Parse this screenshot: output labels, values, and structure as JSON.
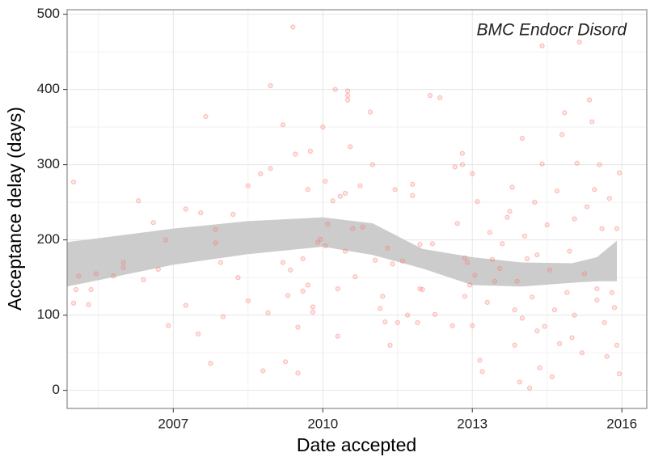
{
  "chart_data": {
    "type": "scatter",
    "annotation": "BMC Endocr Disord",
    "x_label": "Date accepted",
    "y_label": "Acceptance delay (days)",
    "xlim": [
      2004.87,
      2016.5
    ],
    "ylim": [
      -24,
      506
    ],
    "xticks": [
      2007,
      2010,
      2013,
      2016
    ],
    "yticks": [
      0,
      100,
      200,
      300,
      400,
      500
    ],
    "grid": true,
    "color": "#f8766d",
    "x": [
      2005.0,
      2005.0,
      2005.05,
      2005.1,
      2005.3,
      2005.35,
      2005.45,
      2005.8,
      2006.0,
      2006.0,
      2006.3,
      2006.4,
      2006.6,
      2006.7,
      2006.85,
      2006.9,
      2007.25,
      2007.25,
      2007.5,
      2007.55,
      2007.65,
      2007.75,
      2007.85,
      2007.85,
      2007.95,
      2008.0,
      2008.2,
      2008.3,
      2008.5,
      2008.5,
      2008.75,
      2008.8,
      2008.9,
      2008.95,
      2008.95,
      2009.2,
      2009.2,
      2009.25,
      2009.3,
      2009.35,
      2009.4,
      2009.45,
      2009.5,
      2009.5,
      2009.6,
      2009.6,
      2009.7,
      2009.7,
      2009.75,
      2009.8,
      2009.8,
      2009.9,
      2009.95,
      2010.0,
      2010.35,
      2010.45,
      2010.5,
      2010.5,
      2010.5,
      2010.55,
      2010.05,
      2010.05,
      2010.1,
      2010.2,
      2010.25,
      2010.3,
      2010.3,
      2010.45,
      2010.6,
      2010.65,
      2010.75,
      2010.8,
      2010.95,
      2011.0,
      2011.05,
      2011.15,
      2011.2,
      2011.25,
      2011.3,
      2011.35,
      2011.4,
      2011.45,
      2011.5,
      2011.6,
      2011.7,
      2011.8,
      2011.8,
      2011.9,
      2011.95,
      2011.95,
      2012.0,
      2012.15,
      2012.2,
      2012.25,
      2012.35,
      2012.6,
      2012.65,
      2012.7,
      2012.8,
      2012.8,
      2012.85,
      2012.85,
      2012.9,
      2012.95,
      2013.0,
      2013.0,
      2013.05,
      2013.1,
      2013.15,
      2013.2,
      2013.3,
      2013.35,
      2013.4,
      2013.45,
      2013.55,
      2013.6,
      2013.7,
      2013.75,
      2013.8,
      2013.85,
      2013.9,
      2013.95,
      2014.0,
      2014.0,
      2014.05,
      2014.1,
      2014.15,
      2014.2,
      2014.25,
      2014.3,
      2014.35,
      2014.4,
      2014.4,
      2014.45,
      2014.5,
      2014.55,
      2014.6,
      2014.65,
      2014.7,
      2014.75,
      2014.8,
      2014.85,
      2014.9,
      2014.95,
      2015.0,
      2015.05,
      2015.1,
      2015.15,
      2015.2,
      2015.25,
      2015.3,
      2015.35,
      2015.4,
      2015.45,
      2015.5,
      2015.55,
      2015.6,
      2015.65,
      2015.7,
      2015.75,
      2015.8,
      2015.85,
      2015.9,
      2015.9,
      2015.95,
      2015.95,
      2015.5,
      2014.3,
      2013.85,
      2015.05
    ],
    "values": [
      277,
      116,
      134,
      152,
      114,
      134,
      155,
      152,
      170,
      163,
      252,
      147,
      223,
      161,
      200,
      86,
      113,
      241,
      75,
      236,
      364,
      36,
      214,
      196,
      170,
      98,
      234,
      150,
      272,
      119,
      288,
      26,
      103,
      405,
      295,
      353,
      170,
      38,
      126,
      160,
      483,
      314,
      23,
      84,
      175,
      132,
      267,
      140,
      318,
      111,
      104,
      197,
      201,
      350,
      258,
      185,
      398,
      392,
      386,
      324,
      278,
      192,
      221,
      252,
      400,
      135,
      72,
      262,
      215,
      151,
      272,
      217,
      370,
      300,
      173,
      109,
      125,
      91,
      189,
      60,
      168,
      267,
      90,
      172,
      100,
      259,
      274,
      90,
      194,
      135,
      134,
      392,
      195,
      101,
      389,
      86,
      297,
      222,
      300,
      315,
      176,
      125,
      170,
      140,
      86,
      288,
      153,
      251,
      40,
      25,
      117,
      210,
      174,
      145,
      162,
      195,
      230,
      238,
      270,
      107,
      145,
      11,
      335,
      96,
      205,
      175,
      3,
      124,
      250,
      79,
      30,
      458,
      301,
      85,
      220,
      160,
      18,
      107,
      265,
      62,
      340,
      369,
      130,
      185,
      70,
      228,
      302,
      463,
      50,
      155,
      244,
      386,
      357,
      267,
      120,
      300,
      215,
      90,
      45,
      255,
      130,
      110,
      215,
      60,
      289,
      22,
      135,
      180,
      60,
      100
    ],
    "band": {
      "color": "#cccccc",
      "x": [
        2004.87,
        2007,
        2008.5,
        2010,
        2011,
        2012,
        2013,
        2014,
        2015,
        2015.5,
        2015.9
      ],
      "upper": [
        197,
        215,
        225,
        230,
        222,
        188,
        177,
        170,
        169,
        177,
        199
      ],
      "lower": [
        138,
        167,
        181,
        191,
        180,
        162,
        140,
        138,
        143,
        145,
        145
      ]
    }
  }
}
